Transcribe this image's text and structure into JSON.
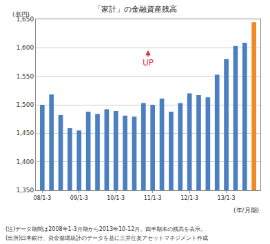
{
  "chart_data": {
    "type": "bar",
    "title": "「家計」の金融資産残高",
    "ylabel": "(兆円)",
    "xlabel": "(年/月期)",
    "categories": [
      "08/1-3",
      null,
      null,
      null,
      "09/1-3",
      null,
      null,
      null,
      "10/1-3",
      null,
      null,
      null,
      "11/1-3",
      null,
      null,
      null,
      "12/1-3",
      null,
      null,
      null,
      "13/1-3",
      null,
      null,
      null
    ],
    "values": [
      1500,
      1518,
      1482,
      1459,
      1455,
      1488,
      1484,
      1492,
      1489,
      1481,
      1479,
      1503,
      1500,
      1511,
      1488,
      1503,
      1520,
      1517,
      1513,
      1553,
      1580,
      1603,
      1609,
      1645
    ],
    "colors": [
      "#4a7fc1",
      "#4a7fc1",
      "#4a7fc1",
      "#4a7fc1",
      "#4a7fc1",
      "#4a7fc1",
      "#4a7fc1",
      "#4a7fc1",
      "#4a7fc1",
      "#4a7fc1",
      "#4a7fc1",
      "#4a7fc1",
      "#4a7fc1",
      "#4a7fc1",
      "#4a7fc1",
      "#4a7fc1",
      "#4a7fc1",
      "#4a7fc1",
      "#4a7fc1",
      "#4a7fc1",
      "#4a7fc1",
      "#4a7fc1",
      "#4a7fc1",
      "#f08a24"
    ],
    "ylim": [
      1350,
      1650
    ],
    "yticks": [
      {
        "value": 1350,
        "label": "1,350"
      },
      {
        "value": 1400,
        "label": "1,400"
      },
      {
        "value": 1450,
        "label": "1,450"
      },
      {
        "value": 1500,
        "label": "1,500"
      },
      {
        "value": 1550,
        "label": "1,550"
      },
      {
        "value": 1600,
        "label": "1,600"
      },
      {
        "value": 1650,
        "label": "1,650"
      }
    ],
    "grid": true,
    "annotations": [
      "UP"
    ],
    "notes": [
      "(注)データ期間は2008年1-3月期から2013年10-12月。四半期末の残高を表示。",
      "(出所)日本銀行、資金循環統計のデータを基に三井住友アセットマネジメント作成"
    ]
  }
}
